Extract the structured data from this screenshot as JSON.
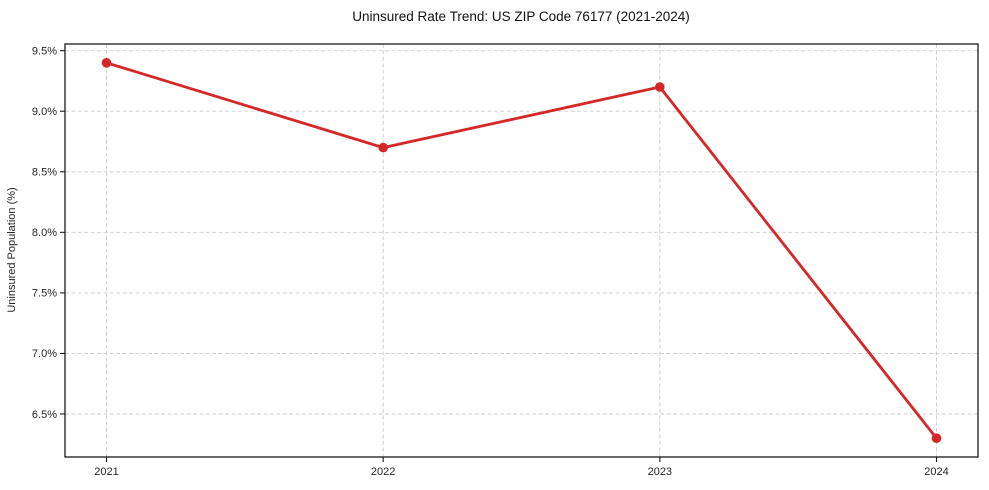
{
  "chart_data": {
    "type": "line",
    "title": "Uninsured Rate Trend: US ZIP Code 76177 (2021-2024)",
    "xlabel": "",
    "ylabel": "Uninsured Population (%)",
    "x": [
      2021,
      2022,
      2023,
      2024
    ],
    "series": [
      {
        "name": "Uninsured rate",
        "values": [
          9.4,
          8.7,
          9.2,
          6.3
        ]
      }
    ],
    "xticks": [
      2021,
      2022,
      2023,
      2024
    ],
    "xtick_labels": [
      "2021",
      "2022",
      "2023",
      "2024"
    ],
    "yticks": [
      6.5,
      7.0,
      7.5,
      8.0,
      8.5,
      9.0,
      9.5
    ],
    "ytick_labels": [
      "6.5%",
      "7.0%",
      "7.5%",
      "8.0%",
      "8.5%",
      "9.0%",
      "9.5%"
    ],
    "xlim": [
      2020.85,
      2024.15
    ],
    "ylim": [
      6.145,
      9.555
    ],
    "grid": true,
    "legend_position": "none",
    "line_color": "#d62728",
    "marker": "circle",
    "grid_color": "#cdcdcd",
    "spine_color": "#1a1a1a",
    "text_color": "#262626",
    "background_color": "#ffffff"
  }
}
